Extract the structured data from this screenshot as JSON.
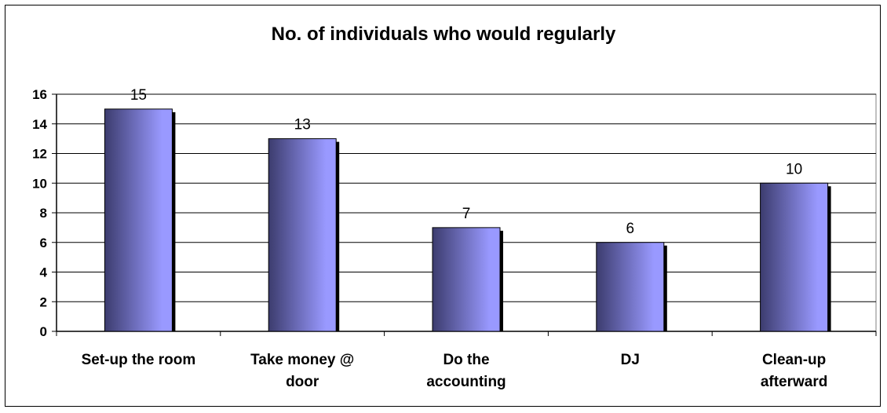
{
  "chart_data": {
    "type": "bar",
    "title": "No. of individuals who would regularly",
    "categories": [
      [
        "Set-up the room"
      ],
      [
        "Take money @",
        "door"
      ],
      [
        "Do the",
        "accounting"
      ],
      [
        "DJ"
      ],
      [
        "Clean-up",
        "afterward"
      ]
    ],
    "values": [
      15,
      13,
      7,
      6,
      10
    ],
    "ylim": [
      0,
      16
    ],
    "yticks": [
      0,
      2,
      4,
      6,
      8,
      10,
      12,
      14,
      16
    ],
    "grid": true,
    "legend": "none",
    "colors": {
      "bar_dark": "#3c3c6e",
      "bar_light": "#9999ff",
      "shadow": "#000000",
      "grid": "#000000"
    }
  }
}
